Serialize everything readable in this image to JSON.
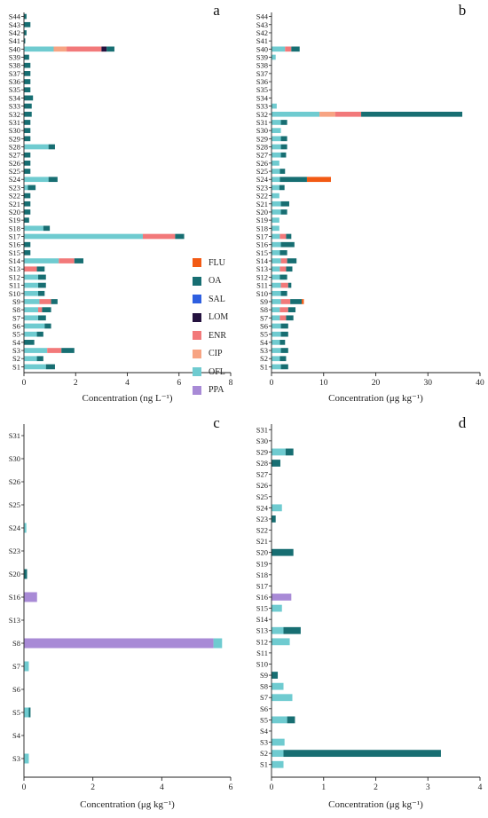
{
  "colors": {
    "FLU": "#f25a14",
    "OA": "#176e72",
    "SAL": "#2e5fe0",
    "LOM": "#24123f",
    "ENR": "#f2797a",
    "CIP": "#f7a483",
    "OFL": "#6fcbd0",
    "PPA": "#a88ad6"
  },
  "chart_data": [
    {
      "type": "bar",
      "panel_label": "a",
      "orientation": "horizontal",
      "stacked": true,
      "xlabel": "Concentration (ng L⁻¹)",
      "xlim": [
        0,
        8
      ],
      "xticks": [
        "0",
        "2",
        "4",
        "6",
        "8"
      ],
      "categories": [
        "S1",
        "S2",
        "S3",
        "S4",
        "S5",
        "S6",
        "S7",
        "S8",
        "S9",
        "S10",
        "S11",
        "S12",
        "S13",
        "S14",
        "S15",
        "S16",
        "S17",
        "S18",
        "S19",
        "S20",
        "S21",
        "S22",
        "S23",
        "S24",
        "S25",
        "S26",
        "S27",
        "S28",
        "S29",
        "S30",
        "S31",
        "S32",
        "S33",
        "S34",
        "S35",
        "S36",
        "S37",
        "S38",
        "S39",
        "S40",
        "S41",
        "S42",
        "S43",
        "S44"
      ],
      "series": [
        {
          "name": "PPA",
          "values": [
            0,
            0,
            0,
            0,
            0,
            0,
            0,
            0,
            0,
            0,
            0,
            0,
            0,
            0,
            0,
            0,
            0,
            0,
            0,
            0,
            0,
            0,
            0,
            0,
            0,
            0,
            0,
            0,
            0,
            0,
            0,
            0,
            0,
            0,
            0,
            0,
            0,
            0,
            0,
            0,
            0,
            0,
            0,
            0
          ]
        },
        {
          "name": "OFL",
          "values": [
            0.85,
            0.5,
            0.9,
            0,
            0.5,
            0.8,
            0.55,
            0.55,
            0.6,
            0.55,
            0.55,
            0.55,
            0,
            1.35,
            0,
            0,
            4.6,
            0.75,
            0,
            0,
            0,
            0,
            0.15,
            0.95,
            0,
            0,
            0,
            0.95,
            0,
            0,
            0,
            0,
            0,
            0,
            0,
            0,
            0,
            0,
            0,
            1.15,
            0,
            0,
            0,
            0
          ]
        },
        {
          "name": "CIP",
          "values": [
            0,
            0,
            0,
            0,
            0,
            0,
            0,
            0,
            0,
            0,
            0,
            0,
            0,
            0,
            0,
            0,
            0,
            0,
            0,
            0,
            0,
            0,
            0,
            0,
            0,
            0,
            0,
            0,
            0,
            0,
            0,
            0,
            0,
            0,
            0,
            0,
            0,
            0,
            0,
            0.5,
            0,
            0,
            0,
            0
          ]
        },
        {
          "name": "ENR",
          "values": [
            0,
            0,
            0.55,
            0,
            0,
            0,
            0,
            0.15,
            0.45,
            0,
            0,
            0,
            0.5,
            0.6,
            0,
            0,
            1.25,
            0,
            0,
            0,
            0,
            0,
            0,
            0,
            0,
            0,
            0,
            0,
            0,
            0,
            0,
            0,
            0,
            0,
            0,
            0,
            0,
            0,
            0,
            1.35,
            0,
            0,
            0,
            0
          ]
        },
        {
          "name": "LOM",
          "values": [
            0,
            0,
            0,
            0,
            0,
            0,
            0,
            0,
            0,
            0,
            0,
            0,
            0,
            0,
            0,
            0,
            0,
            0,
            0,
            0,
            0,
            0,
            0,
            0,
            0,
            0,
            0,
            0,
            0,
            0,
            0,
            0,
            0,
            0,
            0,
            0,
            0,
            0,
            0,
            0.2,
            0,
            0,
            0,
            0
          ]
        },
        {
          "name": "SAL",
          "values": [
            0,
            0,
            0,
            0,
            0,
            0,
            0,
            0,
            0,
            0,
            0,
            0,
            0,
            0,
            0,
            0,
            0,
            0,
            0,
            0,
            0,
            0,
            0,
            0,
            0,
            0,
            0,
            0,
            0,
            0,
            0,
            0,
            0,
            0,
            0,
            0,
            0,
            0,
            0,
            0,
            0,
            0,
            0,
            0
          ]
        },
        {
          "name": "OA",
          "values": [
            0.35,
            0.25,
            0.5,
            0.4,
            0.25,
            0.25,
            0.3,
            0.35,
            0.25,
            0.25,
            0.3,
            0.3,
            0.3,
            0.35,
            0.25,
            0.25,
            0.35,
            0.25,
            0.2,
            0.25,
            0.25,
            0.25,
            0.3,
            0.35,
            0.25,
            0.25,
            0.25,
            0.25,
            0.25,
            0.25,
            0.25,
            0.3,
            0.3,
            0.35,
            0.25,
            0.25,
            0.25,
            0.25,
            0.2,
            0.3,
            0.05,
            0.1,
            0.25,
            0.1
          ]
        },
        {
          "name": "FLU",
          "values": [
            0,
            0,
            0,
            0,
            0,
            0,
            0,
            0,
            0,
            0,
            0,
            0,
            0,
            0,
            0,
            0,
            0,
            0,
            0,
            0,
            0,
            0,
            0,
            0,
            0,
            0,
            0,
            0,
            0,
            0,
            0,
            0,
            0,
            0,
            0,
            0,
            0,
            0,
            0,
            0,
            0,
            0,
            0,
            0
          ]
        }
      ]
    },
    {
      "type": "bar",
      "panel_label": "b",
      "orientation": "horizontal",
      "stacked": true,
      "xlabel": "Concentration (μg kg⁻¹)",
      "xlim": [
        0,
        40
      ],
      "xticks": [
        "0",
        "10",
        "20",
        "30",
        "40"
      ],
      "categories": [
        "S1",
        "S2",
        "S3",
        "S4",
        "S5",
        "S6",
        "S7",
        "S8",
        "S9",
        "S10",
        "S11",
        "S12",
        "S13",
        "S14",
        "S15",
        "S16",
        "S17",
        "S18",
        "S19",
        "S20",
        "S21",
        "S22",
        "S23",
        "S24",
        "S25",
        "S26",
        "S27",
        "S28",
        "S29",
        "S30",
        "S31",
        "S32",
        "S33",
        "S34",
        "S35",
        "S36",
        "S37",
        "S38",
        "S39",
        "S40",
        "S41",
        "S42",
        "S43",
        "S44"
      ],
      "series": [
        {
          "name": "PPA",
          "values": [
            0,
            0,
            0,
            0,
            0,
            0,
            0,
            0,
            0,
            0,
            0,
            0,
            0,
            0,
            0,
            0,
            0,
            0,
            0,
            0,
            0,
            0,
            0,
            0,
            0,
            0,
            0,
            0,
            0,
            0,
            0,
            0,
            0,
            0,
            0,
            0,
            0,
            0,
            0,
            0,
            0,
            0,
            0,
            0
          ]
        },
        {
          "name": "OFL",
          "values": [
            1.8,
            1.6,
            1.8,
            1.6,
            1.8,
            1.8,
            1.6,
            1.6,
            1.8,
            1.8,
            1.8,
            1.6,
            1.6,
            1.8,
            1.6,
            1.8,
            1.6,
            1.5,
            1.5,
            1.8,
            1.8,
            1.5,
            1.5,
            1.6,
            1.6,
            1.5,
            1.8,
            1.8,
            1.8,
            1.8,
            1.8,
            9.2,
            1.0,
            0,
            0,
            0,
            0,
            0,
            0.8,
            2.6,
            0,
            0,
            0,
            0
          ]
        },
        {
          "name": "CIP",
          "values": [
            0,
            0,
            0,
            0,
            0,
            0,
            0,
            0,
            0,
            0,
            0,
            0,
            0,
            0,
            0,
            0,
            0,
            0,
            0,
            0,
            0,
            0,
            0,
            0,
            0,
            0,
            0,
            0,
            0,
            0,
            0,
            3.0,
            0,
            0,
            0,
            0,
            0,
            0,
            0,
            0,
            0,
            0,
            0,
            0
          ]
        },
        {
          "name": "ENR",
          "values": [
            0,
            0,
            0,
            0,
            0,
            0,
            1.2,
            1.6,
            1.8,
            0,
            1.4,
            0,
            1.2,
            1.2,
            0,
            0,
            1.2,
            0,
            0,
            0,
            0,
            0,
            0,
            0,
            0,
            0,
            0,
            0,
            0,
            0,
            0,
            5.0,
            0,
            0,
            0,
            0,
            0,
            0,
            0,
            1.2,
            0,
            0,
            0,
            0
          ]
        },
        {
          "name": "LOM",
          "values": [
            0,
            0,
            0,
            0,
            0,
            0,
            0,
            0,
            0,
            0,
            0,
            0,
            0,
            0,
            0,
            0,
            0,
            0,
            0,
            0,
            0,
            0,
            0,
            0,
            0,
            0,
            0,
            0,
            0,
            0,
            0,
            0,
            0,
            0,
            0,
            0,
            0,
            0,
            0,
            0,
            0,
            0,
            0,
            0
          ]
        },
        {
          "name": "SAL",
          "values": [
            0,
            0,
            0,
            0,
            0,
            0,
            0,
            0,
            0,
            0,
            0,
            0,
            0,
            0,
            0,
            0,
            0,
            0,
            0,
            0,
            0,
            0,
            0,
            0,
            0,
            0,
            0,
            0,
            0,
            0,
            0,
            0,
            0,
            0,
            0,
            0,
            0,
            0,
            0,
            0,
            0,
            0,
            0,
            0
          ]
        },
        {
          "name": "OA",
          "values": [
            1.4,
            1.2,
            1.4,
            1.0,
            1.4,
            1.4,
            1.4,
            1.4,
            2.2,
            1.2,
            0.6,
            1.4,
            1.2,
            1.8,
            1.4,
            2.6,
            1.0,
            0,
            0,
            1.2,
            1.6,
            0,
            1.0,
            5.2,
            1.0,
            0,
            1.0,
            1.2,
            1.2,
            0,
            1.2,
            19.4,
            0,
            0,
            0,
            0,
            0,
            0,
            0,
            1.6,
            0,
            0,
            0,
            0
          ]
        },
        {
          "name": "FLU",
          "values": [
            0,
            0,
            0,
            0,
            0,
            0,
            0,
            0,
            0.4,
            0,
            0,
            0,
            0,
            0,
            0,
            0,
            0,
            0,
            0,
            0,
            0,
            0,
            0,
            4.6,
            0,
            0,
            0,
            0,
            0,
            0,
            0,
            0,
            0,
            0,
            0,
            0,
            0,
            0,
            0,
            0,
            0,
            0,
            0,
            0
          ]
        }
      ]
    },
    {
      "type": "bar",
      "panel_label": "c",
      "orientation": "horizontal",
      "stacked": true,
      "xlabel": "Concentration (μg kg⁻¹)",
      "xlim": [
        0,
        6
      ],
      "xticks": [
        "0",
        "2",
        "4",
        "6"
      ],
      "categories": [
        "S3",
        "S4",
        "S5",
        "S6",
        "S7",
        "S8",
        "S13",
        "S16",
        "S20",
        "S23",
        "S24",
        "S25",
        "S26",
        "S30",
        "S31"
      ],
      "series": [
        {
          "name": "PPA",
          "values": [
            0,
            0,
            0,
            0,
            0,
            5.5,
            0,
            0.38,
            0,
            0,
            0,
            0,
            0,
            0,
            0
          ]
        },
        {
          "name": "OFL",
          "values": [
            0.14,
            0,
            0.14,
            0,
            0.14,
            0.25,
            0,
            0,
            0,
            0,
            0.07,
            0,
            0,
            0,
            0
          ]
        },
        {
          "name": "OA",
          "values": [
            0,
            0,
            0.05,
            0,
            0,
            0,
            0,
            0,
            0.09,
            0,
            0,
            0,
            0,
            0,
            0
          ]
        }
      ]
    },
    {
      "type": "bar",
      "panel_label": "d",
      "orientation": "horizontal",
      "stacked": true,
      "xlabel": "Concentration (μg kg⁻¹)",
      "xlim": [
        0,
        4
      ],
      "xticks": [
        "0",
        "1",
        "2",
        "3",
        "4"
      ],
      "categories": [
        "S1",
        "S2",
        "S3",
        "S4",
        "S5",
        "S6",
        "S7",
        "S8",
        "S9",
        "S10",
        "S11",
        "S12",
        "S13",
        "S14",
        "S15",
        "S16",
        "S17",
        "S18",
        "S19",
        "S20",
        "S21",
        "S22",
        "S23",
        "S24",
        "S25",
        "S26",
        "S27",
        "S28",
        "S29",
        "S30",
        "S31"
      ],
      "series": [
        {
          "name": "PPA",
          "values": [
            0,
            0,
            0,
            0,
            0,
            0,
            0,
            0,
            0,
            0,
            0,
            0,
            0,
            0,
            0,
            0.38,
            0,
            0,
            0,
            0,
            0,
            0,
            0,
            0,
            0,
            0,
            0,
            0,
            0,
            0,
            0
          ]
        },
        {
          "name": "OFL",
          "values": [
            0.23,
            0.23,
            0.25,
            0,
            0.3,
            0,
            0.4,
            0.23,
            0,
            0,
            0,
            0.35,
            0.23,
            0,
            0.2,
            0,
            0,
            0,
            0,
            0,
            0,
            0,
            0,
            0.2,
            0,
            0,
            0,
            0,
            0.27,
            0,
            0
          ]
        },
        {
          "name": "OA",
          "values": [
            0,
            3.02,
            0,
            0,
            0.15,
            0,
            0,
            0,
            0.12,
            0,
            0,
            0,
            0.33,
            0,
            0,
            0,
            0,
            0,
            0,
            0.42,
            0,
            0,
            0.08,
            0,
            0,
            0,
            0,
            0.17,
            0.15,
            0,
            0
          ]
        }
      ]
    }
  ],
  "legend": [
    "FLU",
    "OA",
    "SAL",
    "LOM",
    "ENR",
    "CIP",
    "OFL",
    "PPA"
  ]
}
